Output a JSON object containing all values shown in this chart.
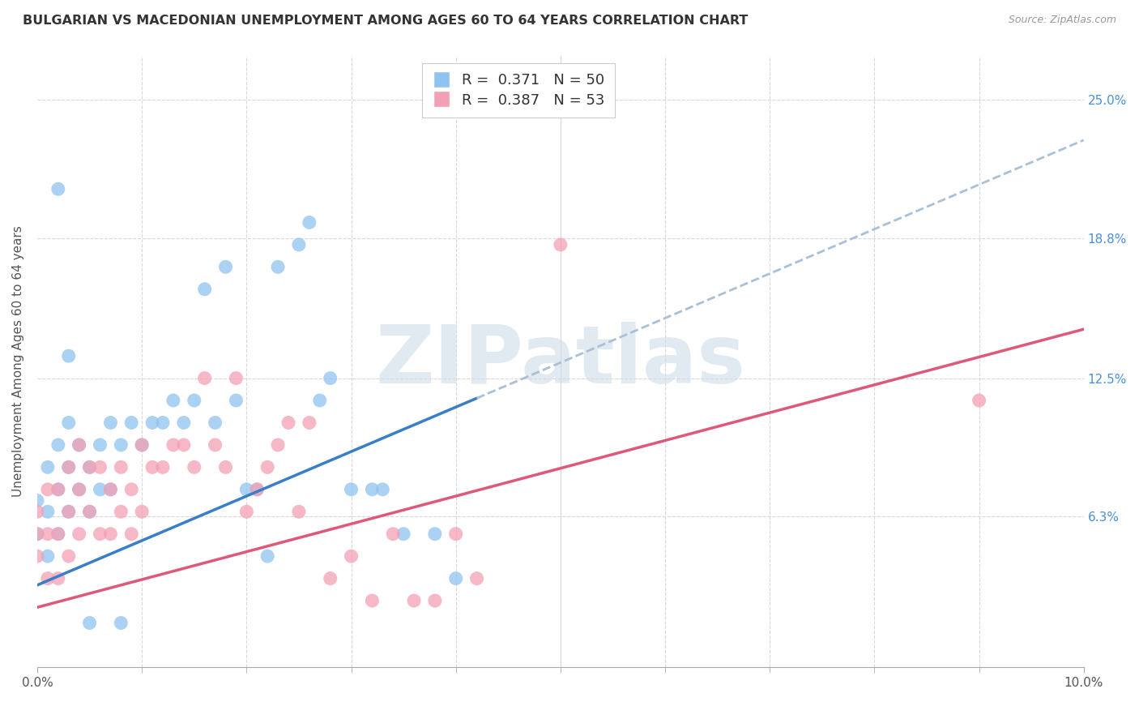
{
  "title": "BULGARIAN VS MACEDONIAN UNEMPLOYMENT AMONG AGES 60 TO 64 YEARS CORRELATION CHART",
  "source": "Source: ZipAtlas.com",
  "ylabel": "Unemployment Among Ages 60 to 64 years",
  "xlim": [
    0.0,
    0.1
  ],
  "ylim": [
    -0.005,
    0.27
  ],
  "xtick_positions": [
    0.0,
    0.1
  ],
  "xticklabels": [
    "0.0%",
    "10.0%"
  ],
  "xminor_ticks": [
    0.01,
    0.02,
    0.03,
    0.04,
    0.05,
    0.06,
    0.07,
    0.08,
    0.09
  ],
  "ytick_positions": [
    0.063,
    0.125,
    0.188,
    0.25
  ],
  "ytick_labels": [
    "6.3%",
    "12.5%",
    "18.8%",
    "25.0%"
  ],
  "bg_color": "#ffffff",
  "grid_color": "#d8d8d8",
  "bulgarian_color": "#90c4f0",
  "macedonian_color": "#f4a0b4",
  "bulgarian_line_color": "#3a7ec8",
  "macedonian_line_color": "#e05878",
  "bulgarian_dashed_color": "#a8c0d8",
  "R_bulgarian": 0.371,
  "N_bulgarian": 50,
  "R_macedonian": 0.387,
  "N_macedonian": 53,
  "legend_R_color": "#3a7ec8",
  "legend_N_color": "#e05878",
  "bulgarian_points_x": [
    0.0,
    0.0,
    0.001,
    0.001,
    0.001,
    0.002,
    0.002,
    0.002,
    0.003,
    0.003,
    0.003,
    0.004,
    0.004,
    0.005,
    0.005,
    0.006,
    0.006,
    0.007,
    0.007,
    0.008,
    0.009,
    0.01,
    0.011,
    0.012,
    0.013,
    0.014,
    0.015,
    0.016,
    0.017,
    0.018,
    0.019,
    0.02,
    0.021,
    0.022,
    0.023,
    0.025,
    0.026,
    0.027,
    0.028,
    0.03,
    0.032,
    0.033,
    0.035,
    0.038,
    0.04,
    0.042,
    0.002,
    0.003,
    0.005,
    0.008
  ],
  "bulgarian_points_y": [
    0.055,
    0.07,
    0.045,
    0.065,
    0.085,
    0.055,
    0.075,
    0.095,
    0.065,
    0.085,
    0.105,
    0.075,
    0.095,
    0.065,
    0.085,
    0.075,
    0.095,
    0.075,
    0.105,
    0.095,
    0.105,
    0.095,
    0.105,
    0.105,
    0.115,
    0.105,
    0.115,
    0.165,
    0.105,
    0.175,
    0.115,
    0.075,
    0.075,
    0.045,
    0.175,
    0.185,
    0.195,
    0.115,
    0.125,
    0.075,
    0.075,
    0.075,
    0.055,
    0.055,
    0.035,
    0.245,
    0.21,
    0.135,
    0.015,
    0.015
  ],
  "macedonian_points_x": [
    0.0,
    0.0,
    0.0,
    0.001,
    0.001,
    0.001,
    0.002,
    0.002,
    0.002,
    0.003,
    0.003,
    0.003,
    0.004,
    0.004,
    0.004,
    0.005,
    0.005,
    0.006,
    0.006,
    0.007,
    0.007,
    0.008,
    0.008,
    0.009,
    0.009,
    0.01,
    0.01,
    0.011,
    0.012,
    0.013,
    0.014,
    0.015,
    0.016,
    0.017,
    0.018,
    0.019,
    0.02,
    0.021,
    0.022,
    0.023,
    0.024,
    0.025,
    0.026,
    0.028,
    0.03,
    0.032,
    0.034,
    0.036,
    0.038,
    0.04,
    0.042,
    0.05,
    0.09
  ],
  "macedonian_points_y": [
    0.045,
    0.055,
    0.065,
    0.035,
    0.055,
    0.075,
    0.035,
    0.055,
    0.075,
    0.045,
    0.065,
    0.085,
    0.055,
    0.075,
    0.095,
    0.065,
    0.085,
    0.055,
    0.085,
    0.055,
    0.075,
    0.065,
    0.085,
    0.055,
    0.075,
    0.065,
    0.095,
    0.085,
    0.085,
    0.095,
    0.095,
    0.085,
    0.125,
    0.095,
    0.085,
    0.125,
    0.065,
    0.075,
    0.085,
    0.095,
    0.105,
    0.065,
    0.105,
    0.035,
    0.045,
    0.025,
    0.055,
    0.025,
    0.025,
    0.055,
    0.035,
    0.185,
    0.115
  ],
  "watermark_text": "ZIPatlas",
  "watermark_color": "#d0dce8",
  "watermark_fontsize": 72,
  "bulgarian_line_intercept": 0.032,
  "bulgarian_line_slope": 2.0,
  "macedonian_line_intercept": 0.022,
  "macedonian_line_slope": 1.25
}
